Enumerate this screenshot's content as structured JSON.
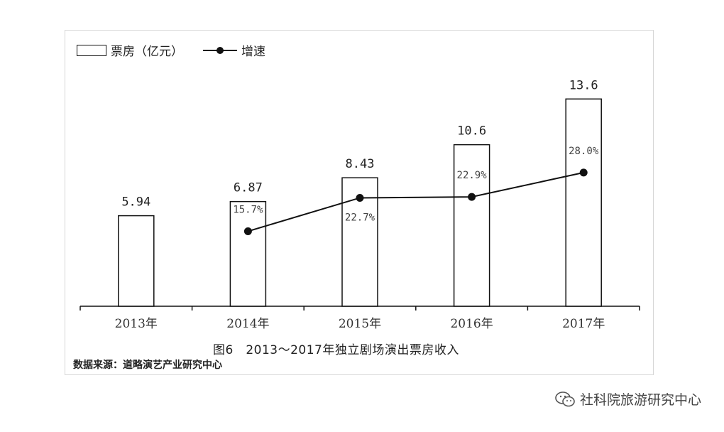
{
  "chart_data": {
    "type": "bar",
    "categories": [
      "2013年",
      "2014年",
      "2015年",
      "2016年",
      "2017年"
    ],
    "series": [
      {
        "name": "票房（亿元）",
        "type": "bar",
        "values": [
          5.94,
          6.87,
          8.43,
          10.6,
          13.6
        ],
        "labels": [
          "5.94",
          "6.87",
          "8.43",
          "10.6",
          "13.6"
        ]
      },
      {
        "name": "增速",
        "type": "line",
        "values": [
          null,
          15.7,
          22.7,
          22.9,
          28.0
        ],
        "labels": [
          "",
          "15.7%",
          "22.7%",
          "22.9%",
          "28.0%"
        ]
      }
    ],
    "ylim": [
      0,
      14.5
    ],
    "growth_ylim": [
      0,
      50
    ],
    "legend_position": "top-left",
    "grid": false,
    "colors": {
      "bar_fill": "#ffffff",
      "bar_stroke": "#111111",
      "line": "#111111"
    }
  },
  "caption": "图6　2013～2017年独立剧场演出票房收入",
  "source": "数据来源：道略演艺产业研究中心",
  "watermark": "社科院旅游研究中心",
  "watermark_icon": "wechat-icon"
}
